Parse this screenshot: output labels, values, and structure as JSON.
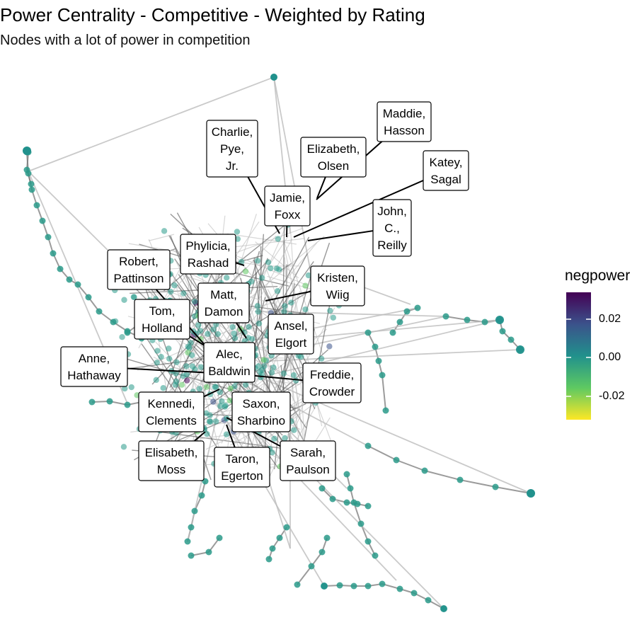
{
  "title": "Power Centrality - Competitive - Weighted by Rating",
  "subtitle": "Nodes with a lot of power in competition",
  "legend": {
    "title": "negpower",
    "ticks": [
      "0.02",
      "0.00",
      "-0.02"
    ],
    "colors": [
      "#440154",
      "#3b528b",
      "#21918c",
      "#5ec962",
      "#fde725"
    ]
  },
  "colors": {
    "node_default": "#2a9a8a",
    "edge_light": "#bdbdbd",
    "edge_dark": "#7a7a7a",
    "leader": "#000000"
  },
  "labels": [
    {
      "lines": [
        "Maddie,",
        "Hasson"
      ]
    },
    {
      "lines": [
        "Charlie,",
        "Pye,",
        "Jr."
      ]
    },
    {
      "lines": [
        "Elizabeth,",
        "Olsen"
      ]
    },
    {
      "lines": [
        "Katey,",
        "Sagal"
      ]
    },
    {
      "lines": [
        "Jamie,",
        "Foxx"
      ]
    },
    {
      "lines": [
        "John,",
        "C.,",
        "Reilly"
      ]
    },
    {
      "lines": [
        "Phylicia,",
        "Rashad"
      ]
    },
    {
      "lines": [
        "Robert,",
        "Pattinson"
      ]
    },
    {
      "lines": [
        "Kristen,",
        "Wiig"
      ]
    },
    {
      "lines": [
        "Matt,",
        "Damon"
      ]
    },
    {
      "lines": [
        "Tom,",
        "Holland"
      ]
    },
    {
      "lines": [
        "Ansel,",
        "Elgort"
      ]
    },
    {
      "lines": [
        "Anne,",
        "Hathaway"
      ]
    },
    {
      "lines": [
        "Alec,",
        "Baldwin"
      ]
    },
    {
      "lines": [
        "Freddie,",
        "Crowder"
      ]
    },
    {
      "lines": [
        "Kennedi,",
        "Clements"
      ]
    },
    {
      "lines": [
        "Saxon,",
        "Sharbino"
      ]
    },
    {
      "lines": [
        "Elisabeth,",
        "Moss"
      ]
    },
    {
      "lines": [
        "Taron,",
        "Egerton"
      ]
    },
    {
      "lines": [
        "Sarah,",
        "Paulson"
      ]
    }
  ]
}
